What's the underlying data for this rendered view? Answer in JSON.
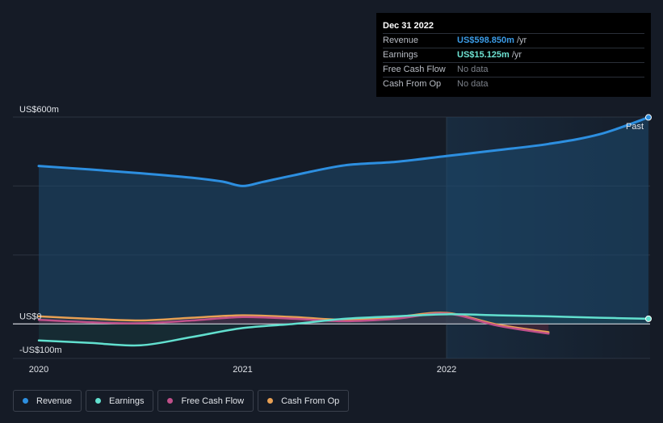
{
  "tooltip": {
    "date": "Dec 31 2022",
    "rows": [
      {
        "label": "Revenue",
        "value": "US$598.850m",
        "unit": "/yr",
        "color": "#3b9be6"
      },
      {
        "label": "Earnings",
        "value": "US$15.125m",
        "unit": "/yr",
        "color": "#6ee3d3"
      },
      {
        "label": "Free Cash Flow",
        "value": "No data",
        "unit": "",
        "color": ""
      },
      {
        "label": "Cash From Op",
        "value": "No data",
        "unit": "",
        "color": ""
      }
    ]
  },
  "colors": {
    "revenue": "#2d8fe0",
    "earnings": "#62e0cf",
    "fcf": "#c0508a",
    "cfo": "#e8a054",
    "background": "#151b26"
  },
  "chart_data": {
    "type": "line",
    "ylim": [
      -100,
      600
    ],
    "y_ticks": [
      {
        "value": 600,
        "label": "US$600m"
      },
      {
        "value": 0,
        "label": "US$0"
      },
      {
        "value": -100,
        "label": "-US$100m"
      }
    ],
    "x_ticks": [
      {
        "value": 2020.0,
        "label": "2020"
      },
      {
        "value": 2021.0,
        "label": "2021"
      },
      {
        "value": 2022.0,
        "label": "2022"
      }
    ],
    "xlim": [
      2019.87,
      2022.99
    ],
    "past_start": 2022.0,
    "past_label": "Past",
    "series": [
      {
        "name": "Revenue",
        "key": "revenue",
        "x": [
          2020.0,
          2020.25,
          2020.5,
          2020.75,
          2020.9,
          2021.0,
          2021.1,
          2021.25,
          2021.5,
          2021.75,
          2022.0,
          2022.25,
          2022.5,
          2022.75,
          2022.99
        ],
        "y": [
          458,
          448,
          437,
          424,
          413,
          400,
          412,
          431,
          460,
          470,
          487,
          504,
          522,
          550,
          599
        ]
      },
      {
        "name": "Earnings",
        "key": "earnings",
        "x": [
          2020.0,
          2020.25,
          2020.5,
          2020.75,
          2021.0,
          2021.25,
          2021.5,
          2021.75,
          2022.0,
          2022.25,
          2022.5,
          2022.75,
          2022.99
        ],
        "y": [
          -48,
          -55,
          -62,
          -38,
          -12,
          0,
          15,
          22,
          28,
          25,
          22,
          18,
          15
        ]
      },
      {
        "name": "Free Cash Flow",
        "key": "fcf",
        "x": [
          2020.0,
          2020.25,
          2020.5,
          2020.75,
          2021.0,
          2021.25,
          2021.5,
          2021.75,
          2022.0,
          2022.25,
          2022.5
        ],
        "y": [
          12,
          5,
          2,
          10,
          20,
          15,
          8,
          15,
          30,
          -5,
          -28
        ]
      },
      {
        "name": "Cash From Op",
        "key": "cfo",
        "x": [
          2020.0,
          2020.25,
          2020.5,
          2020.75,
          2021.0,
          2021.25,
          2021.5,
          2021.75,
          2022.0,
          2022.25,
          2022.5
        ],
        "y": [
          22,
          15,
          10,
          18,
          25,
          20,
          12,
          20,
          32,
          -2,
          -24
        ]
      }
    ]
  },
  "legend": [
    {
      "label": "Revenue",
      "color": "#2d8fe0"
    },
    {
      "label": "Earnings",
      "color": "#62e0cf"
    },
    {
      "label": "Free Cash Flow",
      "color": "#c0508a"
    },
    {
      "label": "Cash From Op",
      "color": "#e8a054"
    }
  ]
}
